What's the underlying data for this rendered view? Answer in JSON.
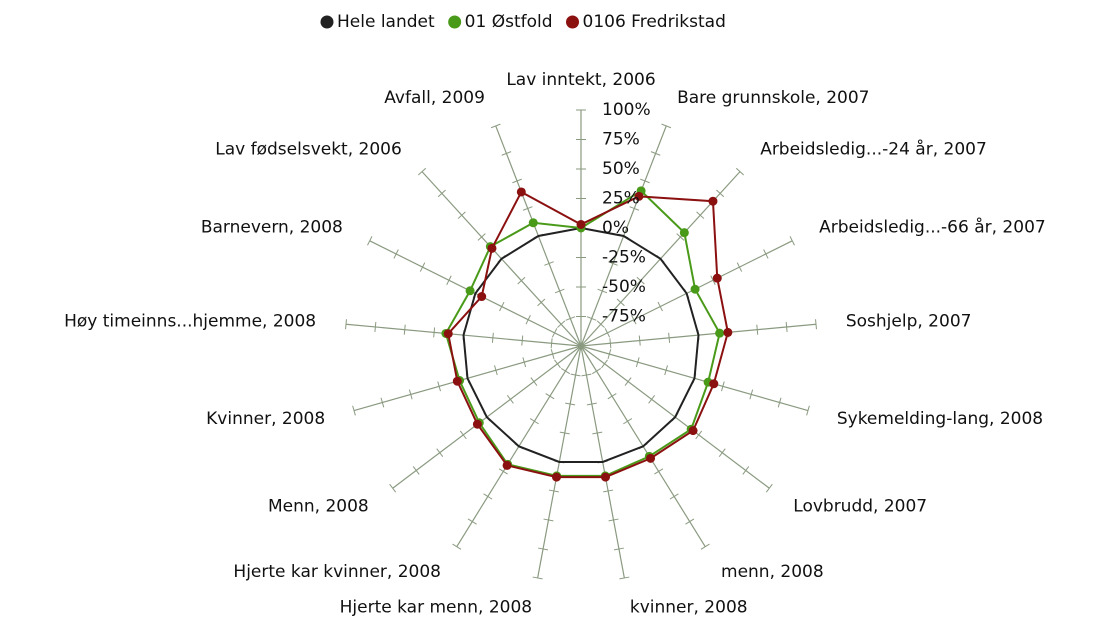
{
  "chart_data": {
    "type": "radar",
    "categories": [
      "Lav inntekt, 2006",
      "Bare grunnskole, 2007",
      "Arbeidsledig...-24 år, 2007",
      "Arbeidsledig...-66 år, 2007",
      "Soshjelp, 2007",
      "Sykemelding-lang, 2008",
      "Lovbrudd, 2007",
      "menn, 2008",
      "kvinner, 2008",
      "Hjerte kar menn, 2008",
      "Hjerte kar kvinner, 2008",
      "Menn, 2008",
      "Kvinner, 2008",
      "Høy timeinns...hjemme, 2008",
      "Barnevern, 2008",
      "Lav fødselsvekt, 2006",
      "Avfall, 2009"
    ],
    "series": [
      {
        "name": "Hele landet",
        "color": "#222222",
        "values": [
          0,
          0,
          0,
          0,
          0,
          0,
          0,
          0,
          0,
          0,
          0,
          0,
          0,
          0,
          0,
          0,
          0
        ]
      },
      {
        "name": "01 Østfold",
        "color": "#4a9a1a",
        "values": [
          0,
          41,
          30,
          8,
          18,
          12,
          17,
          10,
          12,
          12,
          18,
          8,
          7,
          15,
          5,
          14,
          12
        ]
      },
      {
        "name": "0106 Fredrikstad",
        "color": "#8b1010",
        "values": [
          3,
          36,
          66,
          29,
          25,
          17,
          19,
          12,
          13,
          13,
          19,
          10,
          9,
          13,
          -6,
          12,
          40
        ]
      }
    ],
    "ylim": [
      -100,
      100
    ],
    "yticks": [
      {
        "value": 100,
        "label": "100%"
      },
      {
        "value": 75,
        "label": "75%"
      },
      {
        "value": 50,
        "label": "50%"
      },
      {
        "value": 25,
        "label": "25%"
      },
      {
        "value": 0,
        "label": "0%"
      },
      {
        "value": -25,
        "label": "-25%"
      },
      {
        "value": -50,
        "label": "-50%"
      },
      {
        "value": -75,
        "label": "-75%"
      }
    ],
    "legend": "top"
  }
}
